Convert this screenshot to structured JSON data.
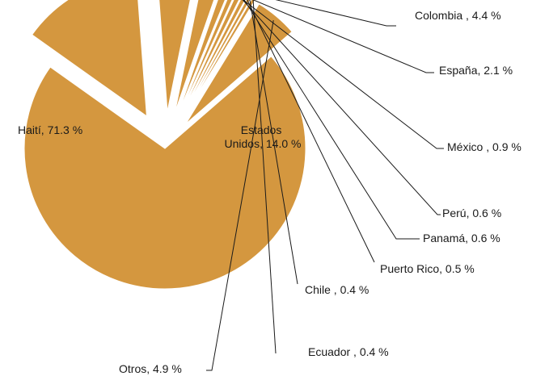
{
  "chart_data": {
    "type": "pie",
    "title": "",
    "slice_color": "#D4973F",
    "slices": [
      {
        "label": "Haití",
        "value": 71.3,
        "text": "Haití, 71.3 %"
      },
      {
        "label": "Estados Unidos",
        "value": 14.0,
        "text": [
          "Estados",
          "Unidos, 14.0 %"
        ]
      },
      {
        "label": "Colombia",
        "value": 4.4,
        "text": "Colombia , 4.4 %"
      },
      {
        "label": "España",
        "value": 2.1,
        "text": "España, 2.1 %"
      },
      {
        "label": "México",
        "value": 0.9,
        "text": "México , 0.9 %"
      },
      {
        "label": "Perú",
        "value": 0.6,
        "text": "Perú, 0.6 %"
      },
      {
        "label": "Panamá",
        "value": 0.6,
        "text": "Panamá, 0.6 %"
      },
      {
        "label": "Puerto Rico",
        "value": 0.5,
        "text": "Puerto Rico, 0.5 %"
      },
      {
        "label": "Chile",
        "value": 0.4,
        "text": "Chile , 0.4 %"
      },
      {
        "label": "Ecuador",
        "value": 0.4,
        "text": "Ecuador , 0.4 %"
      },
      {
        "label": "Otros",
        "value": 4.9,
        "text": "Otros, 4.9 %"
      }
    ]
  }
}
